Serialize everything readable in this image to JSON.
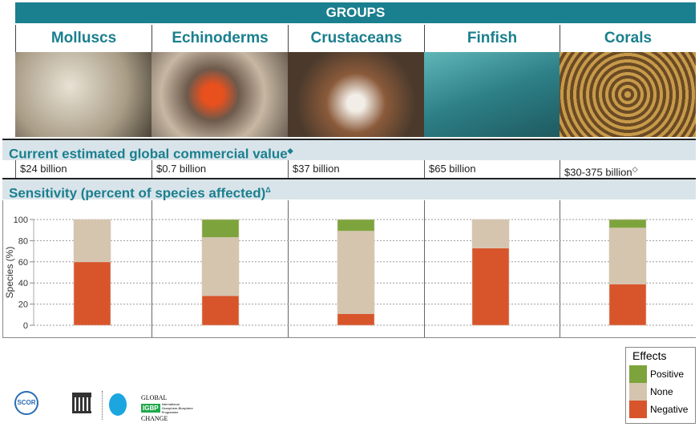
{
  "title": "GROUPS",
  "groups": [
    "Molluscs",
    "Echinoderms",
    "Crustaceans",
    "Finfish",
    "Corals"
  ],
  "value_section": {
    "label": "Current estimated global commercial value",
    "mark": "◆",
    "values": [
      "$24 billion",
      "$0.7 billion",
      "$37 billion",
      "$65 billion",
      "$30-375 billion"
    ],
    "corals_mark": "◇"
  },
  "sens_section": {
    "label": "Sensitivity (percent of species affected)",
    "mark": "Δ"
  },
  "colors": {
    "teal": "#1a7f8e",
    "positive": "#7da43c",
    "none": "#d5c4ae",
    "negative": "#d8552c"
  },
  "chart_data": {
    "type": "bar",
    "stacked": true,
    "categories": [
      "Molluscs",
      "Echinoderms",
      "Crustaceans",
      "Finfish",
      "Corals"
    ],
    "series": [
      {
        "name": "Negative",
        "values": [
          60,
          28,
          11,
          73,
          39
        ]
      },
      {
        "name": "None",
        "values": [
          40,
          55,
          78,
          27,
          53
        ]
      },
      {
        "name": "Positive",
        "values": [
          0,
          17,
          11,
          0,
          8
        ]
      }
    ],
    "ylabel": "Species (%)",
    "ylim": [
      0,
      100
    ],
    "yticks": [
      "0",
      "20",
      "40",
      "60",
      "80",
      "100"
    ],
    "grid": true,
    "legend_title": "Effects",
    "legend": [
      "Positive",
      "None",
      "Negative"
    ],
    "legend_placement": "bottom-right"
  },
  "logos": {
    "scor": "SCOR",
    "igbp": [
      "GLOBAL",
      "IGBP",
      "CHANGE",
      "International Geosphere-Biosphere Programme"
    ]
  }
}
